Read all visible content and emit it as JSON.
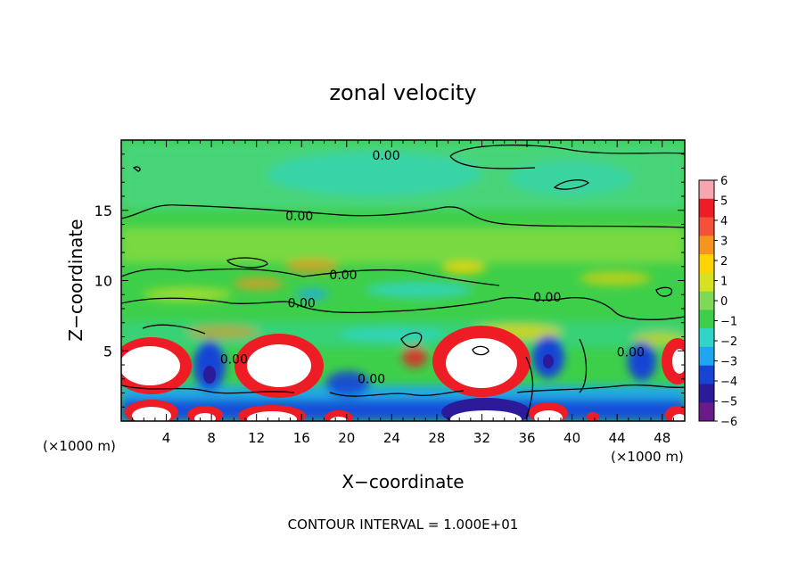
{
  "chart_data": {
    "type": "heatmap",
    "title": "zonal velocity",
    "xlabel": "X−coordinate",
    "ylabel": "Z−coordinate",
    "x_unit_label": "(×1000 m)",
    "x_unit_label_right": "(×1000 m)",
    "xlim": [
      0,
      50
    ],
    "ylim": [
      0,
      20
    ],
    "x_ticks": [
      4,
      8,
      12,
      16,
      20,
      24,
      28,
      32,
      36,
      40,
      44,
      48
    ],
    "y_ticks": [
      5,
      10,
      15
    ],
    "colorbar": {
      "levels": [
        6,
        5,
        4,
        3,
        2,
        1,
        0,
        -1,
        -2,
        -3,
        -4,
        -5,
        -6
      ],
      "labels": [
        "6",
        "5",
        "4",
        "3",
        "2",
        "1",
        "0",
        "−1",
        "−2",
        "−3",
        "−4",
        "−5",
        "−6"
      ],
      "colors": [
        "#f6a6b0",
        "#ee1c24",
        "#f4503a",
        "#f7941e",
        "#ffd400",
        "#d7e21f",
        "#7ed957",
        "#3ecf4a",
        "#2fd5c8",
        "#1ea6f2",
        "#1844d6",
        "#2b1a9a",
        "#6a1b8a"
      ]
    },
    "contour_labels": [
      {
        "text": "0.00",
        "x": 23.5,
        "y": 18.6
      },
      {
        "text": "0.00",
        "x": 15.8,
        "y": 14.3
      },
      {
        "text": "0.00",
        "x": 19.7,
        "y": 10.1
      },
      {
        "text": "0.00",
        "x": 16.0,
        "y": 8.1
      },
      {
        "text": "0.00",
        "x": 37.8,
        "y": 8.5
      },
      {
        "text": "0.00",
        "x": 10.0,
        "y": 4.1
      },
      {
        "text": "0.00",
        "x": 22.2,
        "y": 2.7
      },
      {
        "text": "0.00",
        "x": 45.2,
        "y": 4.6
      }
    ],
    "footer": "CONTOUR INTERVAL = 1.000E+01"
  }
}
